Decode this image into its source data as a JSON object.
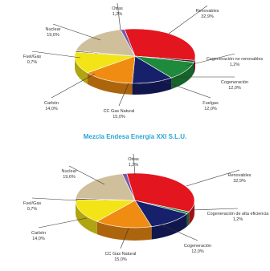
{
  "chart_data": [
    {
      "type": "pie",
      "title": "",
      "slices": [
        {
          "label": "Renovables",
          "value": 32.9,
          "value_text": "32,9%",
          "color": "#e3151f"
        },
        {
          "label": "Cogeneración no renovables",
          "value": 1.2,
          "value_text": "1,2%",
          "color": "#2a2a2a"
        },
        {
          "label": "Cogeneración",
          "value": 12.0,
          "value_text": "12,0%",
          "color": "#1f8a3c"
        },
        {
          "label": "Fuelgas",
          "value": 12.0,
          "value_text": "12,0%",
          "color": "#17206b"
        },
        {
          "label": "CC Gas Natural",
          "value": 15.0,
          "value_text": "15,0%",
          "color": "#f08c12"
        },
        {
          "label": "Carbón",
          "value": 14.0,
          "value_text": "14,0%",
          "color": "#f3e417"
        },
        {
          "label": "Fuel/Gas",
          "value": 0.7,
          "value_text": "0,7%",
          "color": "#1a1a1a"
        },
        {
          "label": "Nuclear",
          "value": 19.6,
          "value_text": "19,6%",
          "color": "#cfbf9b"
        },
        {
          "label": "Otras",
          "value": 1.2,
          "value_text": "1,2%",
          "color": "#7a5aa8"
        }
      ]
    },
    {
      "type": "pie",
      "title": "Mezcla Endesa Energía XXI S.L.U.",
      "slices": [
        {
          "label": "Renovables",
          "value": 32.9,
          "value_text": "32,9%",
          "color": "#e3151f"
        },
        {
          "label": "Cogeneración de alta eficiencia",
          "value": 1.2,
          "value_text": "1,2%",
          "color": "#1f8a3c"
        },
        {
          "label": "Cogeneración",
          "value": 12.0,
          "value_text": "12,0%",
          "color": "#17206b"
        },
        {
          "label": "CC Gas Natural",
          "value": 15.0,
          "value_text": "15,0%",
          "color": "#f08c12"
        },
        {
          "label": "Carbón",
          "value": 14.0,
          "value_text": "14,0%",
          "color": "#f3e417"
        },
        {
          "label": "Fuel/Gas",
          "value": 0.7,
          "value_text": "0,7%",
          "color": "#1a1a1a"
        },
        {
          "label": "Nuclear",
          "value": 19.6,
          "value_text": "19,6%",
          "color": "#cfbf9b"
        },
        {
          "label": "Otras",
          "value": 1.2,
          "value_text": "1,2%",
          "color": "#7a5aa8"
        }
      ]
    }
  ]
}
